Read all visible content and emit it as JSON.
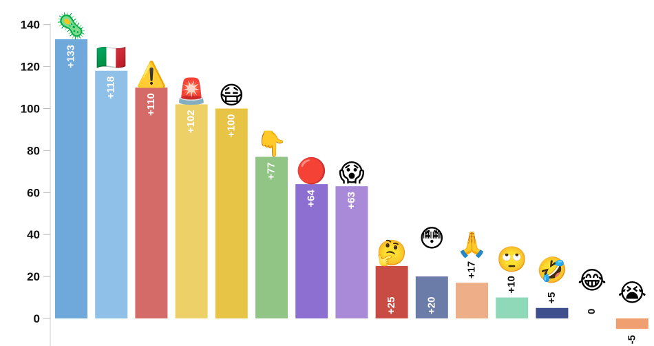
{
  "chart_data": {
    "type": "bar",
    "categories": [
      "🦠",
      "🇮🇹",
      "⚠️",
      "🚨",
      "😷",
      "👇",
      "🔴",
      "😱",
      "🤔",
      "😳",
      "🙏",
      "🙄",
      "🤣",
      "😂",
      "😭"
    ],
    "icons": [
      "microbe-icon",
      "italy-flag-icon",
      "warning-icon",
      "police-light-icon",
      "face-with-mask-icon",
      "pointing-down-icon",
      "red-circle-icon",
      "screaming-face-icon",
      "thinking-face-icon",
      "flushed-face-icon",
      "folded-hands-icon",
      "eye-roll-face-icon",
      "rofl-face-icon",
      "tears-of-joy-face-icon",
      "crying-face-icon"
    ],
    "values": [
      133,
      118,
      110,
      102,
      100,
      77,
      64,
      63,
      25,
      20,
      17,
      10,
      5,
      0,
      -5
    ],
    "data_labels": [
      "+133",
      "+118",
      "+110",
      "+102",
      "+100",
      "+77",
      "+64",
      "+63",
      "+25",
      "+20",
      "+17",
      "+10",
      "+5",
      "0",
      "-5"
    ],
    "colors": [
      "#6fa9dc",
      "#8ec0e8",
      "#d56b69",
      "#eed068",
      "#e7c446",
      "#90c585",
      "#8c6fd0",
      "#a88ad8",
      "#c94c44",
      "#6c7ca8",
      "#eeaf88",
      "#8fd8b8",
      "#3f4e8c",
      "#e8d2b0",
      "#f0a070"
    ],
    "yticks": [
      0,
      20,
      40,
      60,
      80,
      100,
      120,
      140
    ],
    "ylim": [
      -7,
      143
    ],
    "title": "",
    "xlabel": "",
    "ylabel": ""
  }
}
